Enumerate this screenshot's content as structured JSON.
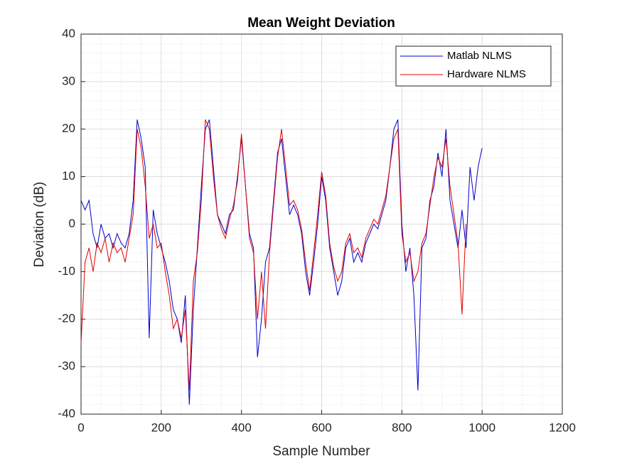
{
  "chart_data": {
    "type": "line",
    "title": "Mean Weight Deviation",
    "x_label": "Sample Number",
    "y_label": "Deviation (dB)",
    "x": [
      0,
      10,
      20,
      30,
      40,
      50,
      60,
      70,
      80,
      90,
      100,
      110,
      120,
      130,
      140,
      150,
      160,
      170,
      180,
      190,
      200,
      210,
      220,
      230,
      240,
      250,
      260,
      270,
      280,
      290,
      300,
      310,
      320,
      330,
      340,
      350,
      360,
      370,
      380,
      390,
      400,
      410,
      420,
      430,
      440,
      450,
      460,
      470,
      480,
      490,
      500,
      510,
      520,
      530,
      540,
      550,
      560,
      570,
      580,
      590,
      600,
      610,
      620,
      630,
      640,
      650,
      660,
      670,
      680,
      690,
      700,
      710,
      720,
      730,
      740,
      750,
      760,
      770,
      780,
      790,
      800,
      810,
      820,
      830,
      840,
      850,
      860,
      870,
      880,
      890,
      900,
      910,
      920,
      930,
      940,
      950,
      960,
      970,
      980,
      990,
      1000
    ],
    "series": [
      {
        "name": "Matlab NLMS",
        "color": "#0000cc",
        "values": [
          5,
          3,
          5,
          -2,
          -5,
          0,
          -3,
          -2,
          -5,
          -2,
          -4,
          -5,
          -2,
          5,
          22,
          18,
          12,
          -24,
          3,
          -2,
          -5,
          -8,
          -12,
          -18,
          -20,
          -25,
          -15,
          -38,
          -18,
          -5,
          8,
          20,
          22,
          12,
          2,
          0,
          -2,
          2,
          3,
          10,
          18,
          8,
          -2,
          -5,
          -28,
          -20,
          -8,
          -5,
          5,
          15,
          18,
          10,
          2,
          4,
          2,
          -2,
          -10,
          -15,
          -8,
          0,
          10,
          5,
          -5,
          -10,
          -15,
          -12,
          -5,
          -3,
          -8,
          -6,
          -8,
          -4,
          -2,
          0,
          -1,
          2,
          5,
          12,
          20,
          22,
          0,
          -10,
          -5,
          -15,
          -35,
          -5,
          -3,
          5,
          8,
          15,
          10,
          20,
          5,
          0,
          -5,
          3,
          -5,
          12,
          5,
          12,
          16
        ]
      },
      {
        "name": "Hardware NLMS",
        "color": "#e00000",
        "values": [
          -25,
          -8,
          -5,
          -10,
          -4,
          -6,
          -3,
          -8,
          -4,
          -6,
          -5,
          -8,
          -3,
          2,
          20,
          16,
          8,
          -3,
          0,
          -5,
          -4,
          -10,
          -15,
          -22,
          -20,
          -24,
          -18,
          -35,
          -12,
          -6,
          5,
          22,
          20,
          10,
          2,
          -1,
          -3,
          1,
          4,
          9,
          19,
          8,
          -3,
          -6,
          -20,
          -10,
          -22,
          -6,
          4,
          14,
          20,
          12,
          4,
          5,
          3,
          -1,
          -8,
          -14,
          -6,
          2,
          11,
          6,
          -4,
          -9,
          -12,
          -10,
          -4,
          -2,
          -6,
          -5,
          -7,
          -3,
          -1,
          1,
          0,
          3,
          6,
          12,
          18,
          20,
          -2,
          -8,
          -6,
          -12,
          -10,
          -4,
          -2,
          4,
          10,
          14,
          12,
          18,
          8,
          2,
          -4,
          -19,
          0,
          null,
          null,
          null,
          null
        ]
      }
    ],
    "xlim": [
      0,
      1200
    ],
    "xticks": [
      0,
      200,
      400,
      600,
      800,
      1000,
      1200
    ],
    "ylim": [
      -40,
      40
    ],
    "yticks": [
      -40,
      -30,
      -20,
      -10,
      0,
      10,
      20,
      30,
      40
    ],
    "grid": true,
    "minor_grid": true,
    "legend": "northeast"
  }
}
